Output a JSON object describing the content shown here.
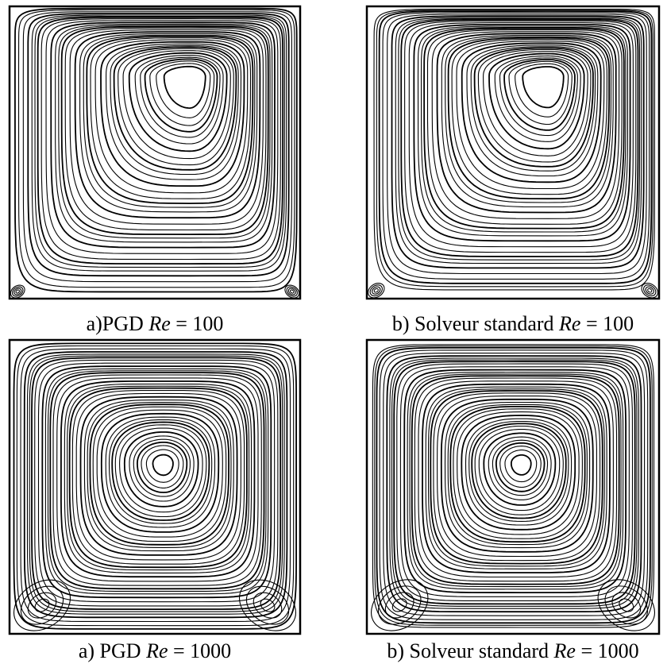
{
  "panels": [
    {
      "prefix": "a)PGD",
      "variable": "Re",
      "equation": "= 100"
    },
    {
      "prefix": "b) Solveur standard",
      "variable": "Re",
      "equation": "= 100"
    },
    {
      "prefix": "a) PGD",
      "variable": "Re",
      "equation": "= 1000"
    },
    {
      "prefix": "b) Solveur standard",
      "variable": "Re",
      "equation": "= 1000"
    }
  ]
}
